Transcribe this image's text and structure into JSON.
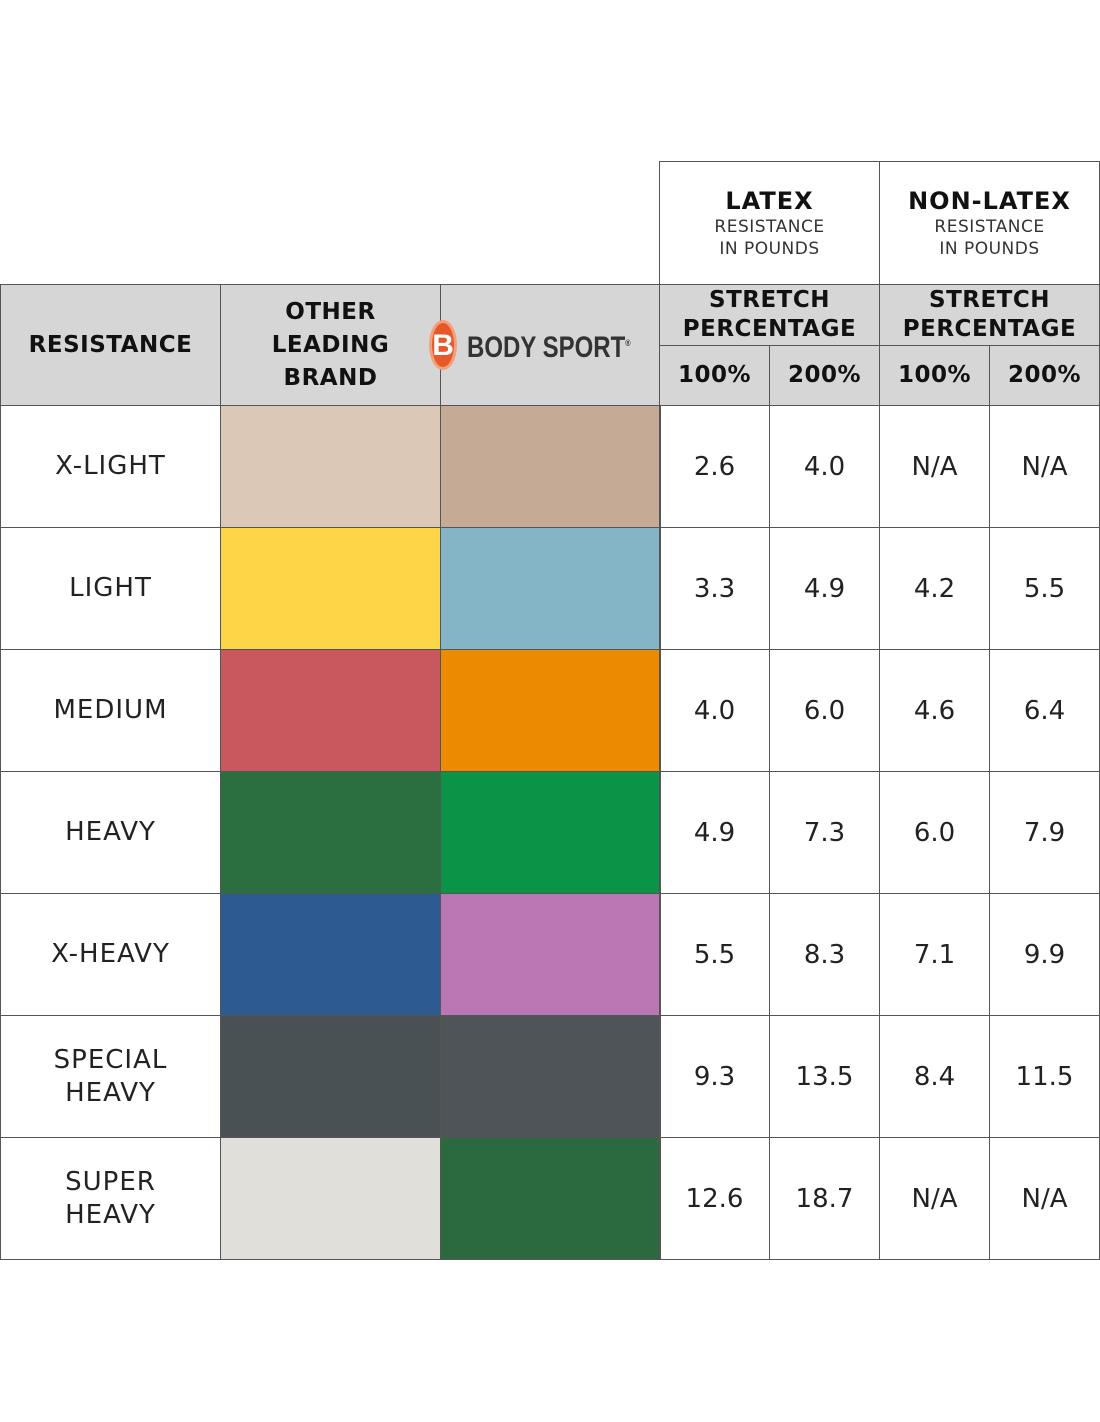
{
  "latex": {
    "title": "LATEX",
    "subtitle1": "RESISTANCE",
    "subtitle2": "IN POUNDS"
  },
  "non_latex": {
    "title": "NON-LATEX",
    "subtitle1": "RESISTANCE",
    "subtitle2": "IN POUNDS"
  },
  "headers": {
    "resistance": "RESISTANCE",
    "other_brand_line1": "OTHER",
    "other_brand_line2": "LEADING",
    "other_brand_line3": "BRAND",
    "stretch_line1": "STRETCH",
    "stretch_line2": "PERCENTAGE",
    "pct_100": "100%",
    "pct_200": "200%"
  },
  "logo": {
    "badge_letter": "B",
    "brand": "BODY SPORT",
    "mark": "®",
    "badge_color": "#e8582a"
  },
  "rows": [
    {
      "label_lines": [
        "X-LIGHT"
      ],
      "other_color": "#dbc8b7",
      "bodysport_color": "#c5ab96",
      "latex_100": "2.6",
      "latex_200": "4.0",
      "nonlatex_100": "N/A",
      "nonlatex_200": "N/A"
    },
    {
      "label_lines": [
        "LIGHT"
      ],
      "other_color": "#fcd646",
      "bodysport_color": "#83b5c7",
      "latex_100": "3.3",
      "latex_200": "4.9",
      "nonlatex_100": "4.2",
      "nonlatex_200": "5.5"
    },
    {
      "label_lines": [
        "MEDIUM"
      ],
      "other_color": "#c9575e",
      "bodysport_color": "#ec8b01",
      "latex_100": "4.0",
      "latex_200": "6.0",
      "nonlatex_100": "4.6",
      "nonlatex_200": "6.4"
    },
    {
      "label_lines": [
        "HEAVY"
      ],
      "other_color": "#2b6f41",
      "bodysport_color": "#0b9347",
      "latex_100": "4.9",
      "latex_200": "7.3",
      "nonlatex_100": "6.0",
      "nonlatex_200": "7.9"
    },
    {
      "label_lines": [
        "X-HEAVY"
      ],
      "other_color": "#2d5a90",
      "bodysport_color": "#bb77b3",
      "latex_100": "5.5",
      "latex_200": "8.3",
      "nonlatex_100": "7.1",
      "nonlatex_200": "9.9"
    },
    {
      "label_lines": [
        "SPECIAL",
        "HEAVY"
      ],
      "other_color": "#4a5155",
      "bodysport_color": "#4f5458",
      "latex_100": "9.3",
      "latex_200": "13.5",
      "nonlatex_100": "8.4",
      "nonlatex_200": "11.5"
    },
    {
      "label_lines": [
        "SUPER",
        "HEAVY"
      ],
      "other_color": "#e1dfd9",
      "bodysport_color": "#2a6a3e",
      "latex_100": "12.6",
      "latex_200": "18.7",
      "nonlatex_100": "N/A",
      "nonlatex_200": "N/A"
    }
  ]
}
